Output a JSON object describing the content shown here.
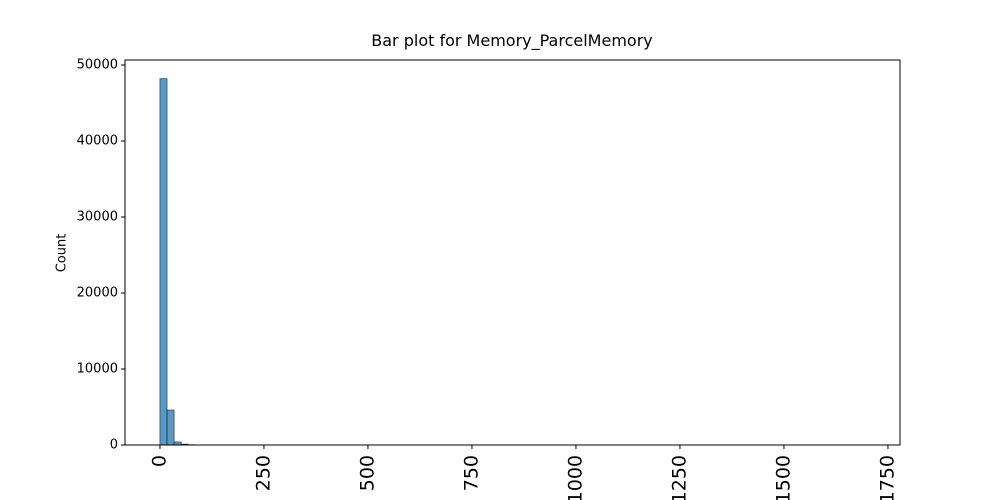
{
  "chart_data": {
    "type": "histogram",
    "title": "Bar plot for Memory_ParcelMemory",
    "y_label": "Count",
    "color": "#1f77b4",
    "bins": [
      0,
      17,
      34,
      51,
      68,
      85,
      102,
      119,
      136,
      153,
      170,
      187,
      204,
      221,
      238,
      255,
      272,
      289,
      306,
      323,
      340,
      357,
      374,
      391,
      408,
      425,
      442,
      459,
      476,
      493,
      510,
      527,
      544,
      561,
      578,
      595,
      612,
      629,
      646,
      663,
      680,
      697,
      714,
      731,
      748,
      765,
      782,
      799,
      816,
      833,
      850,
      867,
      884,
      901,
      918,
      935,
      952,
      969,
      986,
      1003,
      1020,
      1037,
      1054,
      1071,
      1088,
      1105,
      1122,
      1139,
      1156,
      1173,
      1190,
      1207,
      1224,
      1241,
      1258,
      1275,
      1292,
      1309,
      1326,
      1343,
      1360,
      1377,
      1394,
      1411,
      1428,
      1445,
      1462,
      1479,
      1496,
      1513,
      1530,
      1547,
      1564,
      1581,
      1598,
      1615,
      1632,
      1649,
      1666,
      1683,
      1700
    ],
    "counts": [
      48200,
      4600,
      400,
      120,
      40,
      15,
      8,
      5,
      3,
      2,
      0,
      0,
      0,
      0,
      0,
      0,
      0,
      0,
      0,
      0,
      0,
      0,
      0,
      0,
      0,
      0,
      0,
      0,
      0,
      0,
      0,
      0,
      0,
      0,
      0,
      0,
      0,
      0,
      0,
      0,
      0,
      0,
      0,
      0,
      0,
      0,
      0,
      0,
      0,
      0,
      0,
      0,
      0,
      0,
      0,
      0,
      0,
      0,
      0,
      0,
      0,
      0,
      0,
      0,
      0,
      0,
      0,
      0,
      0,
      0,
      0,
      0,
      0,
      0,
      0,
      0,
      0,
      0,
      0,
      0,
      0,
      0,
      0,
      0,
      0,
      0,
      0,
      0,
      0,
      0,
      0,
      0,
      0,
      0,
      0,
      0,
      0,
      0,
      0,
      1
    ],
    "xlim": [
      -84,
      1779
    ],
    "ylim": [
      0,
      50658
    ],
    "xticks": [
      0,
      250,
      500,
      750,
      1000,
      1250,
      1500,
      1750
    ],
    "yticks": [
      0,
      10000,
      20000,
      30000,
      40000,
      50000
    ]
  }
}
